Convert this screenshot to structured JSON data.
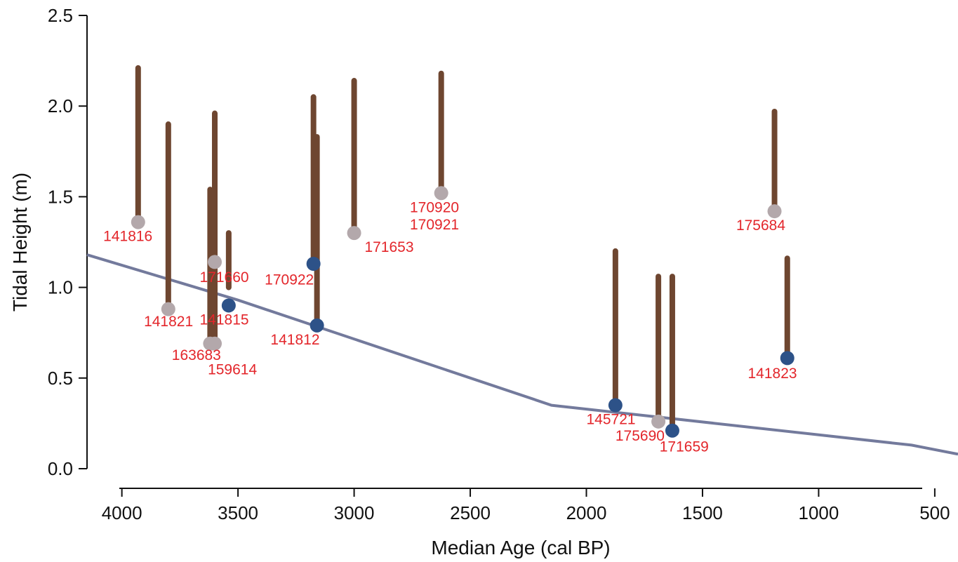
{
  "chart_data": {
    "type": "scatter",
    "title": "",
    "xlabel": "Median Age (cal BP)",
    "ylabel": "Tidal Height (m)",
    "xlim": [
      4150,
      400
    ],
    "ylim": [
      0.0,
      2.5
    ],
    "x_reversed": true,
    "grid": false,
    "legend": "none",
    "x_ticks": [
      {
        "value": 4000,
        "label": "4000"
      },
      {
        "value": 3500,
        "label": "3500"
      },
      {
        "value": 3000,
        "label": "3000"
      },
      {
        "value": 2500,
        "label": "2500"
      },
      {
        "value": 2000,
        "label": "2000"
      },
      {
        "value": 1500,
        "label": "1500"
      },
      {
        "value": 1000,
        "label": "1000"
      },
      {
        "value": 500,
        "label": "500"
      }
    ],
    "y_ticks": [
      {
        "value": 0.0,
        "label": "0.0"
      },
      {
        "value": 0.5,
        "label": "0.5"
      },
      {
        "value": 1.0,
        "label": "1.0"
      },
      {
        "value": 1.5,
        "label": "1.5"
      },
      {
        "value": 2.0,
        "label": "2.0"
      },
      {
        "value": 2.5,
        "label": "2.5"
      }
    ],
    "colors": {
      "range_bar": "#6e4630",
      "point_blue": "#2d5288",
      "point_gray": "#b3a8ab",
      "label": "#e3262b",
      "curve": "#737a9c"
    },
    "curve": [
      {
        "x": 4150,
        "y": 1.18
      },
      {
        "x": 3500,
        "y": 0.93
      },
      {
        "x": 2150,
        "y": 0.35
      },
      {
        "x": 600,
        "y": 0.13
      },
      {
        "x": 400,
        "y": 0.08
      }
    ],
    "ranges": [
      {
        "x": 3930,
        "ymin": 1.36,
        "ymax": 2.21
      },
      {
        "x": 3800,
        "ymin": 0.88,
        "ymax": 1.9
      },
      {
        "x": 3600,
        "ymin": 0.69,
        "ymax": 1.96
      },
      {
        "x": 3620,
        "ymin": 0.69,
        "ymax": 1.54
      },
      {
        "x": 3540,
        "ymin": 1.0,
        "ymax": 1.3
      },
      {
        "x": 3175,
        "ymin": 1.13,
        "ymax": 2.05
      },
      {
        "x": 3160,
        "ymin": 0.79,
        "ymax": 1.83
      },
      {
        "x": 3000,
        "ymin": 1.3,
        "ymax": 2.14
      },
      {
        "x": 2625,
        "ymin": 1.52,
        "ymax": 2.18
      },
      {
        "x": 1875,
        "ymin": 0.35,
        "ymax": 1.2
      },
      {
        "x": 1690,
        "ymin": 0.26,
        "ymax": 1.06
      },
      {
        "x": 1630,
        "ymin": 0.21,
        "ymax": 1.06
      },
      {
        "x": 1190,
        "ymin": 1.42,
        "ymax": 1.97
      },
      {
        "x": 1135,
        "ymin": 0.61,
        "ymax": 1.16
      }
    ],
    "points": [
      {
        "x": 3930,
        "y": 1.36,
        "color": "gray"
      },
      {
        "x": 3800,
        "y": 0.88,
        "color": "gray"
      },
      {
        "x": 3600,
        "y": 1.14,
        "color": "gray"
      },
      {
        "x": 3620,
        "y": 0.69,
        "color": "gray"
      },
      {
        "x": 3600,
        "y": 0.69,
        "color": "gray"
      },
      {
        "x": 3540,
        "y": 0.9,
        "color": "blue"
      },
      {
        "x": 3175,
        "y": 1.13,
        "color": "blue"
      },
      {
        "x": 3160,
        "y": 0.79,
        "color": "blue"
      },
      {
        "x": 3000,
        "y": 1.3,
        "color": "gray"
      },
      {
        "x": 2625,
        "y": 1.52,
        "color": "gray"
      },
      {
        "x": 1875,
        "y": 0.35,
        "color": "blue"
      },
      {
        "x": 1690,
        "y": 0.26,
        "color": "gray"
      },
      {
        "x": 1630,
        "y": 0.21,
        "color": "blue"
      },
      {
        "x": 1190,
        "y": 1.42,
        "color": "gray"
      },
      {
        "x": 1135,
        "y": 0.61,
        "color": "blue"
      }
    ],
    "annotations": [
      {
        "text": "141816",
        "x": 4080,
        "y": 1.255
      },
      {
        "text": "141821",
        "x": 3905,
        "y": 0.785
      },
      {
        "text": "171660",
        "x": 3665,
        "y": 1.03
      },
      {
        "text": "141815",
        "x": 3665,
        "y": 0.795
      },
      {
        "text": "163683",
        "x": 3785,
        "y": 0.6
      },
      {
        "text": "159614",
        "x": 3630,
        "y": 0.52
      },
      {
        "text": "170922",
        "x": 3385,
        "y": 1.015
      },
      {
        "text": "171653",
        "x": 2955,
        "y": 1.195
      },
      {
        "text": "141812",
        "x": 3360,
        "y": 0.685
      },
      {
        "text": "170920",
        "x": 2760,
        "y": 1.415
      },
      {
        "text": "170921",
        "x": 2760,
        "y": 1.32
      },
      {
        "text": "175684",
        "x": 1355,
        "y": 1.315
      },
      {
        "text": "145721",
        "x": 2000,
        "y": 0.245
      },
      {
        "text": "175690",
        "x": 1875,
        "y": 0.155
      },
      {
        "text": "171659",
        "x": 1685,
        "y": 0.095
      },
      {
        "text": "141823",
        "x": 1305,
        "y": 0.5
      }
    ]
  }
}
